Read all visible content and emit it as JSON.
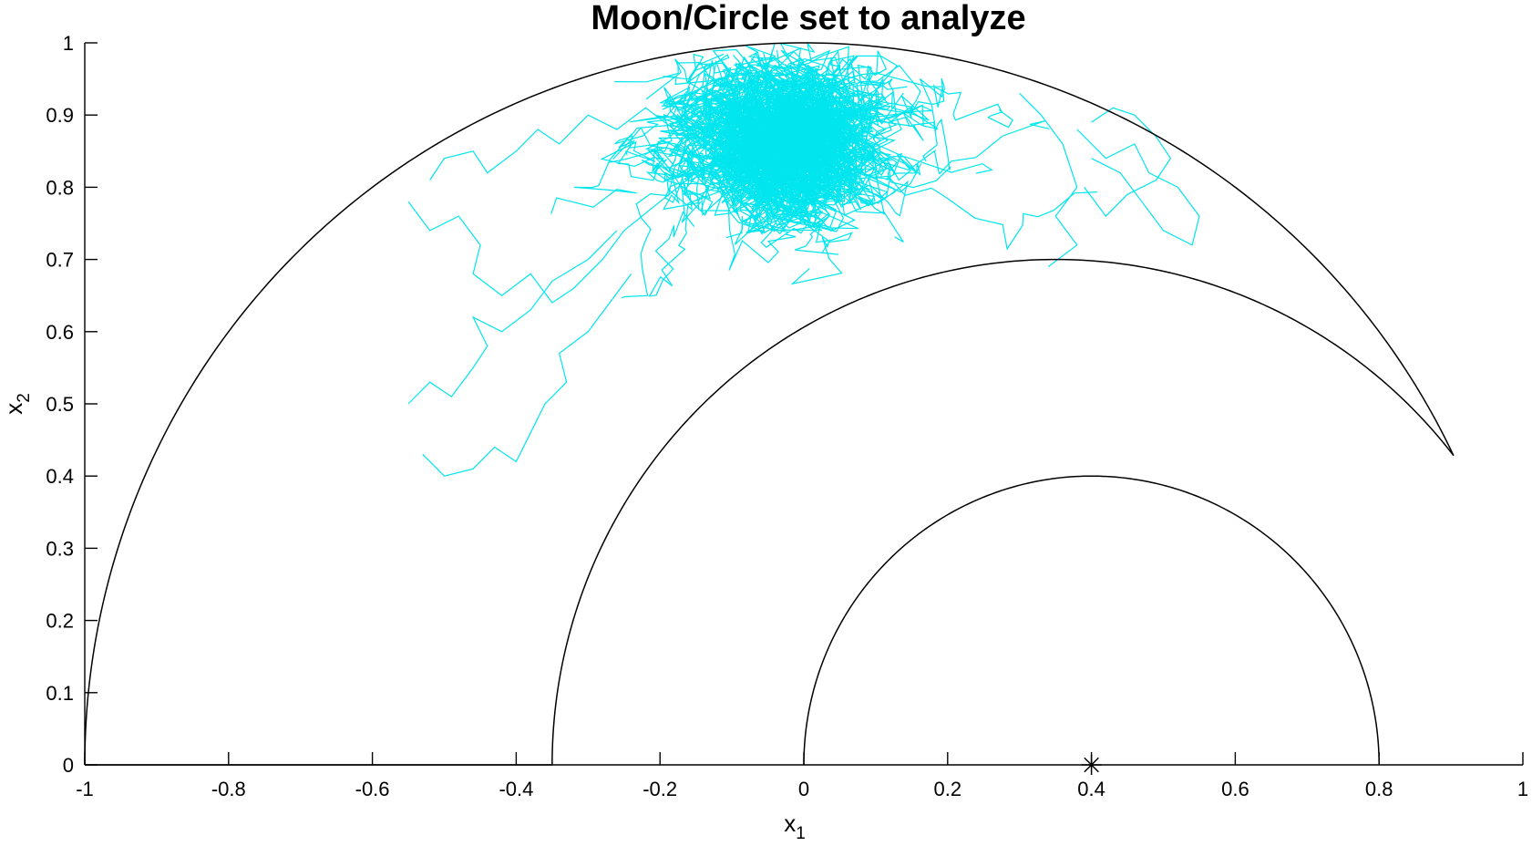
{
  "chart_data": {
    "type": "line",
    "title": "Moon/Circle set to analyze",
    "xlabel": {
      "base": "x",
      "sub": "1"
    },
    "ylabel": {
      "base": "x",
      "sub": "2"
    },
    "xlim": [
      -1,
      1
    ],
    "ylim": [
      0,
      1
    ],
    "xticks": [
      -1,
      -0.8,
      -0.6,
      -0.4,
      -0.2,
      0,
      0.2,
      0.4,
      0.6,
      0.8,
      1
    ],
    "xtick_labels": [
      "-1",
      "-0.8",
      "-0.6",
      "-0.4",
      "-0.2",
      "0",
      "0.2",
      "0.4",
      "0.6",
      "0.8",
      "1"
    ],
    "yticks": [
      0,
      0.1,
      0.2,
      0.3,
      0.4,
      0.5,
      0.6,
      0.7,
      0.8,
      0.9,
      1
    ],
    "ytick_labels": [
      "0",
      "0.1",
      "0.2",
      "0.3",
      "0.4",
      "0.5",
      "0.6",
      "0.7",
      "0.8",
      "0.9",
      "1"
    ],
    "grid": false,
    "boundaries": {
      "outer_arc": {
        "center": [
          0,
          0
        ],
        "radius": 1,
        "color": "#000000"
      },
      "inner_arc": {
        "center": [
          0.35,
          0
        ],
        "radius": 0.7,
        "color": "#000000"
      },
      "circle_arc": {
        "center": [
          0.4,
          0
        ],
        "radius": 0.4,
        "color": "#000000"
      },
      "baseline": {
        "from": [
          -1,
          0
        ],
        "to": [
          -0.35,
          0
        ],
        "color": "#000000"
      }
    },
    "marker": {
      "x": 0.4,
      "y": 0,
      "symbol": "asterisk",
      "color": "#000000"
    },
    "trajectory": {
      "color": "#00e5ee",
      "cluster_center": [
        -0.02,
        0.86
      ],
      "spread": [
        0.16,
        0.1
      ],
      "walks": [
        [
          [
            -0.55,
            0.78
          ],
          [
            -0.52,
            0.74
          ],
          [
            -0.48,
            0.76
          ],
          [
            -0.45,
            0.72
          ],
          [
            -0.46,
            0.68
          ],
          [
            -0.42,
            0.65
          ],
          [
            -0.38,
            0.68
          ],
          [
            -0.35,
            0.64
          ],
          [
            -0.32,
            0.66
          ],
          [
            -0.28,
            0.7
          ],
          [
            -0.25,
            0.74
          ],
          [
            -0.2,
            0.78
          ],
          [
            -0.15,
            0.82
          ],
          [
            -0.1,
            0.85
          ]
        ],
        [
          [
            -0.55,
            0.5
          ],
          [
            -0.52,
            0.53
          ],
          [
            -0.49,
            0.51
          ],
          [
            -0.46,
            0.55
          ],
          [
            -0.44,
            0.58
          ],
          [
            -0.46,
            0.62
          ],
          [
            -0.42,
            0.6
          ],
          [
            -0.38,
            0.63
          ],
          [
            -0.35,
            0.67
          ],
          [
            -0.3,
            0.7
          ],
          [
            -0.26,
            0.74
          ]
        ],
        [
          [
            -0.53,
            0.43
          ],
          [
            -0.5,
            0.4
          ],
          [
            -0.46,
            0.41
          ],
          [
            -0.43,
            0.44
          ],
          [
            -0.4,
            0.42
          ],
          [
            -0.38,
            0.46
          ],
          [
            -0.36,
            0.5
          ],
          [
            -0.33,
            0.53
          ],
          [
            -0.34,
            0.57
          ],
          [
            -0.3,
            0.6
          ],
          [
            -0.27,
            0.64
          ],
          [
            -0.24,
            0.68
          ]
        ],
        [
          [
            -0.52,
            0.81
          ],
          [
            -0.5,
            0.84
          ],
          [
            -0.46,
            0.85
          ],
          [
            -0.44,
            0.82
          ],
          [
            -0.4,
            0.85
          ],
          [
            -0.37,
            0.88
          ],
          [
            -0.34,
            0.86
          ],
          [
            -0.3,
            0.9
          ],
          [
            -0.26,
            0.88
          ],
          [
            -0.22,
            0.91
          ],
          [
            -0.18,
            0.88
          ]
        ],
        [
          [
            0.3,
            0.93
          ],
          [
            0.33,
            0.9
          ],
          [
            0.36,
            0.86
          ],
          [
            0.38,
            0.8
          ],
          [
            0.35,
            0.76
          ],
          [
            0.38,
            0.72
          ],
          [
            0.34,
            0.69
          ]
        ],
        [
          [
            0.38,
            0.88
          ],
          [
            0.42,
            0.84
          ],
          [
            0.46,
            0.86
          ],
          [
            0.48,
            0.82
          ],
          [
            0.52,
            0.8
          ],
          [
            0.55,
            0.76
          ],
          [
            0.54,
            0.72
          ],
          [
            0.5,
            0.74
          ],
          [
            0.47,
            0.78
          ],
          [
            0.44,
            0.82
          ],
          [
            0.4,
            0.84
          ]
        ],
        [
          [
            0.4,
            0.89
          ],
          [
            0.43,
            0.91
          ],
          [
            0.46,
            0.9
          ],
          [
            0.49,
            0.87
          ],
          [
            0.51,
            0.84
          ],
          [
            0.49,
            0.81
          ],
          [
            0.45,
            0.79
          ],
          [
            0.42,
            0.76
          ],
          [
            0.39,
            0.8
          ]
        ]
      ]
    }
  }
}
